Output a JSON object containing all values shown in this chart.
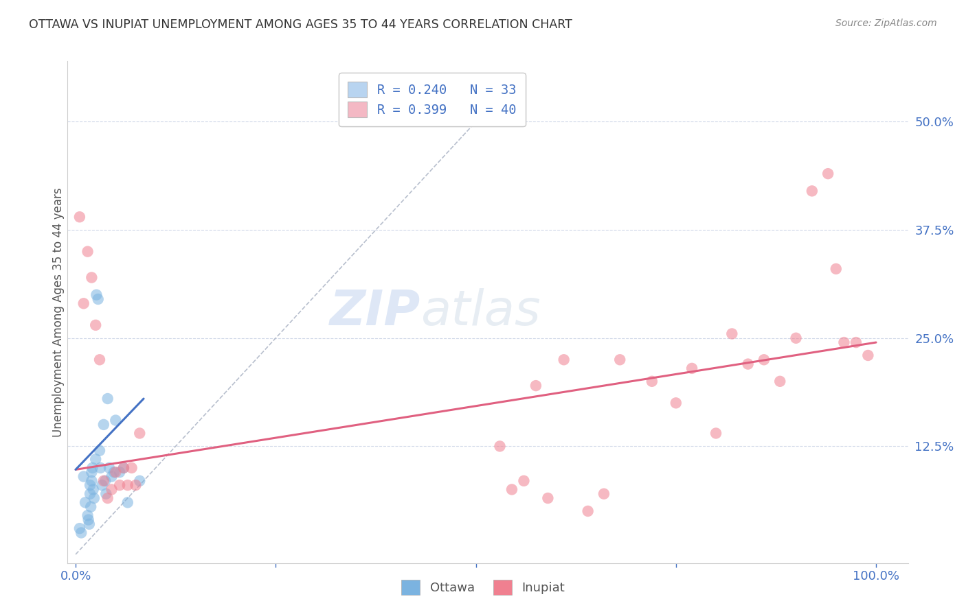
{
  "title": "OTTAWA VS INUPIAT UNEMPLOYMENT AMONG AGES 35 TO 44 YEARS CORRELATION CHART",
  "source": "Source: ZipAtlas.com",
  "ylabel_label": "Unemployment Among Ages 35 to 44 years",
  "legend_entries": [
    {
      "label": "R = 0.240   N = 33",
      "color": "#b8d4f0"
    },
    {
      "label": "R = 0.399   N = 40",
      "color": "#f4b8c4"
    }
  ],
  "ottawa_scatter_x": [
    0.005,
    0.007,
    0.01,
    0.012,
    0.015,
    0.016,
    0.017,
    0.018,
    0.018,
    0.019,
    0.02,
    0.02,
    0.021,
    0.022,
    0.023,
    0.025,
    0.026,
    0.028,
    0.03,
    0.031,
    0.033,
    0.035,
    0.037,
    0.038,
    0.04,
    0.042,
    0.045,
    0.048,
    0.05,
    0.055,
    0.06,
    0.065,
    0.08
  ],
  "ottawa_scatter_y": [
    0.03,
    0.025,
    0.09,
    0.06,
    0.045,
    0.04,
    0.035,
    0.08,
    0.07,
    0.055,
    0.095,
    0.085,
    0.1,
    0.075,
    0.065,
    0.11,
    0.3,
    0.295,
    0.12,
    0.1,
    0.08,
    0.15,
    0.085,
    0.07,
    0.18,
    0.1,
    0.09,
    0.095,
    0.155,
    0.095,
    0.1,
    0.06,
    0.085
  ],
  "inupiat_scatter_x": [
    0.005,
    0.01,
    0.015,
    0.02,
    0.025,
    0.03,
    0.035,
    0.04,
    0.045,
    0.05,
    0.055,
    0.06,
    0.065,
    0.07,
    0.075,
    0.08,
    0.53,
    0.545,
    0.56,
    0.575,
    0.59,
    0.61,
    0.64,
    0.66,
    0.68,
    0.72,
    0.75,
    0.77,
    0.8,
    0.82,
    0.84,
    0.86,
    0.88,
    0.9,
    0.92,
    0.94,
    0.95,
    0.96,
    0.975,
    0.99
  ],
  "inupiat_scatter_y": [
    0.39,
    0.29,
    0.35,
    0.32,
    0.265,
    0.225,
    0.085,
    0.065,
    0.075,
    0.095,
    0.08,
    0.1,
    0.08,
    0.1,
    0.08,
    0.14,
    0.125,
    0.075,
    0.085,
    0.195,
    0.065,
    0.225,
    0.05,
    0.07,
    0.225,
    0.2,
    0.175,
    0.215,
    0.14,
    0.255,
    0.22,
    0.225,
    0.2,
    0.25,
    0.42,
    0.44,
    0.33,
    0.245,
    0.245,
    0.23
  ],
  "ottawa_line_x": [
    0.0,
    0.085
  ],
  "ottawa_line_y": [
    0.098,
    0.18
  ],
  "inupiat_line_x": [
    0.0,
    1.0
  ],
  "inupiat_line_y": [
    0.098,
    0.245
  ],
  "ref_line_x": [
    0.0,
    0.55
  ],
  "ref_line_y": [
    0.0,
    0.55
  ],
  "ottawa_color": "#7bb3e0",
  "inupiat_color": "#f08090",
  "ottawa_line_color": "#4472c4",
  "inupiat_line_color": "#e06080",
  "ref_line_color": "#b0b8c8",
  "background_color": "#ffffff",
  "grid_color": "#d0d8e8",
  "title_color": "#333333",
  "axis_label_color": "#555555",
  "tick_color": "#4472c4",
  "legend_text_color": "#4472c4",
  "xlim": [
    -0.01,
    1.04
  ],
  "ylim": [
    -0.01,
    0.57
  ],
  "yticks": [
    0.125,
    0.25,
    0.375,
    0.5
  ],
  "ytick_labels": [
    "12.5%",
    "25.0%",
    "37.5%",
    "50.0%"
  ],
  "xticks": [
    0.0,
    0.25,
    0.5,
    0.75,
    1.0
  ],
  "xtick_labels": [
    "0.0%",
    "",
    "",
    "",
    "100.0%"
  ]
}
